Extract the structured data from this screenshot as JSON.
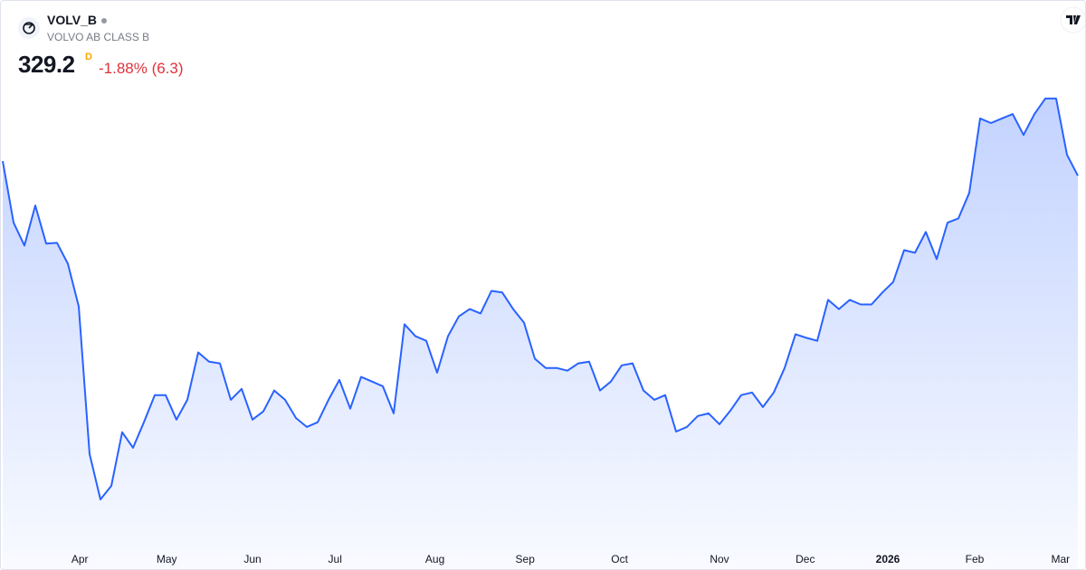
{
  "symbol": "VOLV_B",
  "name": "VOLVO AB CLASS B",
  "last_price": 329.2,
  "interval": "D",
  "change_label": "-1.88% (6.3)",
  "chart_data": {
    "type": "area",
    "color": "#2962ff",
    "values": [
      333.6,
      315.0,
      308.1,
      320.2,
      308.7,
      308.9,
      302.6,
      289.7,
      245.1,
      231.4,
      235.5,
      251.7,
      247.0,
      254.7,
      262.9,
      262.9,
      255.5,
      261.5,
      275.8,
      273.0,
      272.5,
      261.5,
      264.8,
      255.5,
      258.0,
      264.3,
      261.5,
      256.0,
      253.3,
      254.7,
      261.5,
      267.5,
      258.8,
      268.4,
      267.0,
      265.6,
      257.4,
      284.3,
      280.7,
      279.3,
      269.7,
      280.7,
      286.7,
      288.9,
      287.6,
      294.4,
      293.9,
      288.9,
      284.8,
      273.9,
      271.1,
      271.1,
      270.3,
      272.5,
      273.0,
      264.3,
      267.0,
      271.9,
      272.5,
      264.3,
      261.5,
      262.9,
      251.9,
      253.3,
      256.6,
      257.4,
      254.1,
      258.2,
      262.9,
      263.7,
      259.3,
      263.7,
      271.1,
      281.3,
      280.2,
      279.3,
      291.7,
      288.9,
      291.7,
      290.3,
      290.3,
      293.9,
      297.1,
      306.7,
      305.9,
      312.2,
      304.0,
      315.0,
      316.3,
      324.0,
      346.5,
      345.1,
      346.5,
      347.8,
      341.5,
      347.8,
      352.5,
      352.5,
      335.5,
      329.2
    ],
    "ylim": [
      218,
      382
    ],
    "xticks": [
      {
        "value": 7.1,
        "label": "Apr"
      },
      {
        "value": 15.1,
        "label": "May"
      },
      {
        "value": 23,
        "label": "Jun"
      },
      {
        "value": 30.6,
        "label": "Jul"
      },
      {
        "value": 39.8,
        "label": "Aug"
      },
      {
        "value": 48.1,
        "label": "Sep"
      },
      {
        "value": 56.8,
        "label": "Oct"
      },
      {
        "value": 66,
        "label": "Nov"
      },
      {
        "value": 73.9,
        "label": "Dec"
      },
      {
        "value": 81.5,
        "label": "2026"
      },
      {
        "value": 89.5,
        "label": "Feb"
      },
      {
        "value": 97.4,
        "label": "Mar"
      }
    ]
  }
}
